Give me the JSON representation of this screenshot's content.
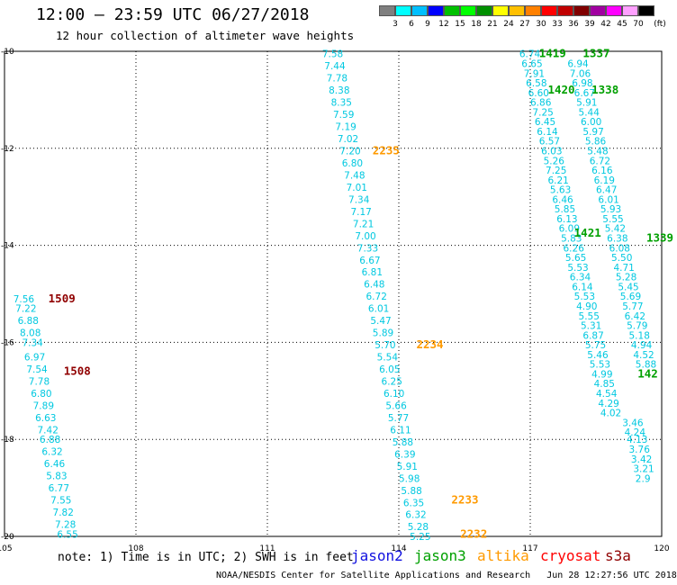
{
  "header": {
    "title": "12:00 – 23:59 UTC 06/27/2018",
    "subtitle": "12 hour collection of altimeter wave heights"
  },
  "colorbar": {
    "unit": "(ft)",
    "colors": [
      "#7f7f7f",
      "#00ffff",
      "#00bfff",
      "#0000ff",
      "#00c000",
      "#00ff00",
      "#009000",
      "#ffff00",
      "#ffc000",
      "#ff8000",
      "#ff0000",
      "#c00000",
      "#800000",
      "#a000a0",
      "#ff00ff",
      "#ffa0ff",
      "#000000"
    ],
    "ticks": [
      "3",
      "6",
      "9",
      "12",
      "15",
      "18",
      "21",
      "24",
      "27",
      "30",
      "33",
      "36",
      "39",
      "42",
      "45",
      "70"
    ]
  },
  "legend": {
    "note": "note: 1) Time is in UTC; 2) SWH is in feet",
    "satellites": [
      {
        "name": "jason2",
        "color": "#1010e0"
      },
      {
        "name": "jason3",
        "color": "#00a000"
      },
      {
        "name": "altika",
        "color": "#ff9a00"
      },
      {
        "name": "cryosat",
        "color": "#ff0000"
      },
      {
        "name": "s3a",
        "color": "#900000"
      }
    ]
  },
  "footer": "NOAA/NESDIS Center for Satellite Applications and Research   Jun 28 12:27:56 UTC 2018",
  "chart_data": {
    "type": "scatter",
    "title": "12:00 – 23:59 UTC 06/27/2018",
    "xlim": [
      105,
      120
    ],
    "ylim": [
      -20,
      -10
    ],
    "x_ticks": [
      "105",
      "108",
      "111",
      "114",
      "117",
      "120"
    ],
    "y_ticks": [
      "-10",
      "-12",
      "-14",
      "-16",
      "-18",
      "-20"
    ],
    "grid": true,
    "series": [
      {
        "name": "s3a",
        "color": "#00c8e0",
        "time_labels": [
          {
            "label": "1509",
            "lon": 106.0,
            "lat": -15.1
          },
          {
            "label": "1508",
            "lon": 106.35,
            "lat": -16.6
          }
        ],
        "points": [
          {
            "lon": 105.2,
            "lat": -15.1,
            "v": "7.56"
          },
          {
            "lon": 105.25,
            "lat": -15.3,
            "v": "7.22"
          },
          {
            "lon": 105.3,
            "lat": -15.55,
            "v": "6.88"
          },
          {
            "lon": 105.35,
            "lat": -15.8,
            "v": "8.08"
          },
          {
            "lon": 105.4,
            "lat": -16.0,
            "v": "7.34"
          },
          {
            "lon": 105.45,
            "lat": -16.3,
            "v": "6.97"
          },
          {
            "lon": 105.5,
            "lat": -16.55,
            "v": "7.54"
          },
          {
            "lon": 105.55,
            "lat": -16.8,
            "v": "7.78"
          },
          {
            "lon": 105.6,
            "lat": -17.05,
            "v": "6.80"
          },
          {
            "lon": 105.65,
            "lat": -17.3,
            "v": "7.89"
          },
          {
            "lon": 105.7,
            "lat": -17.55,
            "v": "6.63"
          },
          {
            "lon": 105.75,
            "lat": -17.8,
            "v": "7.42"
          },
          {
            "lon": 105.8,
            "lat": -18.0,
            "v": "6.88"
          },
          {
            "lon": 105.85,
            "lat": -18.25,
            "v": "6.32"
          },
          {
            "lon": 105.9,
            "lat": -18.5,
            "v": "6.46"
          },
          {
            "lon": 105.95,
            "lat": -18.75,
            "v": "5.83"
          },
          {
            "lon": 106.0,
            "lat": -19.0,
            "v": "6.77"
          },
          {
            "lon": 106.05,
            "lat": -19.25,
            "v": "7.55"
          },
          {
            "lon": 106.1,
            "lat": -19.5,
            "v": "7.82"
          },
          {
            "lon": 106.15,
            "lat": -19.75,
            "v": "7.28"
          },
          {
            "lon": 106.2,
            "lat": -19.95,
            "v": "6.55"
          }
        ]
      },
      {
        "name": "altika",
        "color": "#00c8e0",
        "time_labels": [
          {
            "label": "2235",
            "lon": 113.4,
            "lat": -12.05
          },
          {
            "label": "2234",
            "lon": 114.4,
            "lat": -16.05
          },
          {
            "label": "2233",
            "lon": 115.2,
            "lat": -19.25
          },
          {
            "label": "2232",
            "lon": 115.4,
            "lat": -19.95
          }
        ],
        "points": [
          {
            "lon": 112.25,
            "lat": -10.05,
            "v": "7.58"
          },
          {
            "lon": 112.3,
            "lat": -10.3,
            "v": "7.44"
          },
          {
            "lon": 112.35,
            "lat": -10.55,
            "v": "7.78"
          },
          {
            "lon": 112.4,
            "lat": -10.8,
            "v": "8.38"
          },
          {
            "lon": 112.45,
            "lat": -11.05,
            "v": "8.35"
          },
          {
            "lon": 112.5,
            "lat": -11.3,
            "v": "7.59"
          },
          {
            "lon": 112.55,
            "lat": -11.55,
            "v": "7.19"
          },
          {
            "lon": 112.6,
            "lat": -11.8,
            "v": "7.02"
          },
          {
            "lon": 112.65,
            "lat": -12.05,
            "v": "7.20"
          },
          {
            "lon": 112.7,
            "lat": -12.3,
            "v": "6.80"
          },
          {
            "lon": 112.75,
            "lat": -12.55,
            "v": "7.48"
          },
          {
            "lon": 112.8,
            "lat": -12.8,
            "v": "7.01"
          },
          {
            "lon": 112.85,
            "lat": -13.05,
            "v": "7.34"
          },
          {
            "lon": 112.9,
            "lat": -13.3,
            "v": "7.17"
          },
          {
            "lon": 112.95,
            "lat": -13.55,
            "v": "7.21"
          },
          {
            "lon": 113.0,
            "lat": -13.8,
            "v": "7.00"
          },
          {
            "lon": 113.05,
            "lat": -14.05,
            "v": "7.33"
          },
          {
            "lon": 113.1,
            "lat": -14.3,
            "v": "6.67"
          },
          {
            "lon": 113.15,
            "lat": -14.55,
            "v": "6.81"
          },
          {
            "lon": 113.2,
            "lat": -14.8,
            "v": "6.48"
          },
          {
            "lon": 113.25,
            "lat": -15.05,
            "v": "6.72"
          },
          {
            "lon": 113.3,
            "lat": -15.3,
            "v": "6.01"
          },
          {
            "lon": 113.35,
            "lat": -15.55,
            "v": "5.47"
          },
          {
            "lon": 113.4,
            "lat": -15.8,
            "v": "5.89"
          },
          {
            "lon": 113.45,
            "lat": -16.05,
            "v": "5.70"
          },
          {
            "lon": 113.5,
            "lat": -16.3,
            "v": "5.54"
          },
          {
            "lon": 113.55,
            "lat": -16.55,
            "v": "6.05"
          },
          {
            "lon": 113.6,
            "lat": -16.8,
            "v": "6.25"
          },
          {
            "lon": 113.65,
            "lat": -17.05,
            "v": "6.10"
          },
          {
            "lon": 113.7,
            "lat": -17.3,
            "v": "5.66"
          },
          {
            "lon": 113.75,
            "lat": -17.55,
            "v": "5.77"
          },
          {
            "lon": 113.8,
            "lat": -17.8,
            "v": "6.11"
          },
          {
            "lon": 113.85,
            "lat": -18.05,
            "v": "5.88"
          },
          {
            "lon": 113.9,
            "lat": -18.3,
            "v": "6.39"
          },
          {
            "lon": 113.95,
            "lat": -18.55,
            "v": "5.91"
          },
          {
            "lon": 114.0,
            "lat": -18.8,
            "v": "5.98"
          },
          {
            "lon": 114.05,
            "lat": -19.05,
            "v": "5.88"
          },
          {
            "lon": 114.1,
            "lat": -19.3,
            "v": "6.35"
          },
          {
            "lon": 114.15,
            "lat": -19.55,
            "v": "6.32"
          },
          {
            "lon": 114.2,
            "lat": -19.8,
            "v": "5.28"
          },
          {
            "lon": 114.25,
            "lat": -20.0,
            "v": "5.25"
          }
        ]
      },
      {
        "name": "jason3",
        "color": "#00c8e0",
        "time_labels": [
          {
            "label": "1419",
            "lon": 117.2,
            "lat": -10.05
          },
          {
            "label": "1420",
            "lon": 117.4,
            "lat": -10.8
          },
          {
            "label": "1421",
            "lon": 118.0,
            "lat": -13.75
          }
        ],
        "points": [
          {
            "lon": 116.75,
            "lat": -10.05,
            "v": "6.74"
          },
          {
            "lon": 116.8,
            "lat": -10.25,
            "v": "6.65"
          },
          {
            "lon": 116.85,
            "lat": -10.45,
            "v": "7.91"
          },
          {
            "lon": 116.9,
            "lat": -10.65,
            "v": "6.58"
          },
          {
            "lon": 116.95,
            "lat": -10.85,
            "v": "6.60"
          },
          {
            "lon": 117.0,
            "lat": -11.05,
            "v": "6.86"
          },
          {
            "lon": 117.05,
            "lat": -11.25,
            "v": "7.25"
          },
          {
            "lon": 117.1,
            "lat": -11.45,
            "v": "6.45"
          },
          {
            "lon": 117.15,
            "lat": -11.65,
            "v": "6.14"
          },
          {
            "lon": 117.2,
            "lat": -11.85,
            "v": "6.57"
          },
          {
            "lon": 117.25,
            "lat": -12.05,
            "v": "6.03"
          },
          {
            "lon": 117.3,
            "lat": -12.25,
            "v": "5.26"
          },
          {
            "lon": 117.35,
            "lat": -12.45,
            "v": "7.25"
          },
          {
            "lon": 117.4,
            "lat": -12.65,
            "v": "6.21"
          },
          {
            "lon": 117.45,
            "lat": -12.85,
            "v": "5.63"
          },
          {
            "lon": 117.5,
            "lat": -13.05,
            "v": "6.46"
          },
          {
            "lon": 117.55,
            "lat": -13.25,
            "v": "5.85"
          },
          {
            "lon": 117.6,
            "lat": -13.45,
            "v": "6.13"
          },
          {
            "lon": 117.65,
            "lat": -13.65,
            "v": "6.09"
          },
          {
            "lon": 117.7,
            "lat": -13.85,
            "v": "5.83"
          },
          {
            "lon": 117.75,
            "lat": -14.05,
            "v": "6.26"
          },
          {
            "lon": 117.8,
            "lat": -14.25,
            "v": "5.65"
          },
          {
            "lon": 117.85,
            "lat": -14.45,
            "v": "5.53"
          },
          {
            "lon": 117.9,
            "lat": -14.65,
            "v": "6.34"
          },
          {
            "lon": 117.95,
            "lat": -14.85,
            "v": "6.14"
          },
          {
            "lon": 118.0,
            "lat": -15.05,
            "v": "5.53"
          },
          {
            "lon": 118.05,
            "lat": -15.25,
            "v": "4.90"
          },
          {
            "lon": 118.1,
            "lat": -15.45,
            "v": "5.55"
          },
          {
            "lon": 118.15,
            "lat": -15.65,
            "v": "5.31"
          },
          {
            "lon": 118.2,
            "lat": -15.85,
            "v": "6.87"
          },
          {
            "lon": 118.25,
            "lat": -16.05,
            "v": "5.75"
          },
          {
            "lon": 118.3,
            "lat": -16.25,
            "v": "5.46"
          },
          {
            "lon": 118.35,
            "lat": -16.45,
            "v": "5.53"
          },
          {
            "lon": 118.4,
            "lat": -16.65,
            "v": "4.99"
          },
          {
            "lon": 118.45,
            "lat": -16.85,
            "v": "4.85"
          },
          {
            "lon": 118.5,
            "lat": -17.05,
            "v": "4.54"
          },
          {
            "lon": 118.55,
            "lat": -17.25,
            "v": "4.29"
          },
          {
            "lon": 118.6,
            "lat": -17.45,
            "v": "4.02"
          }
        ]
      },
      {
        "name": "jason3",
        "color": "#00c8e0",
        "time_labels": [
          {
            "label": "1337",
            "lon": 118.2,
            "lat": -10.05
          },
          {
            "label": "1338",
            "lon": 118.4,
            "lat": -10.8
          },
          {
            "label": "1339",
            "lon": 119.65,
            "lat": -13.85
          },
          {
            "label": "142",
            "lon": 119.45,
            "lat": -16.65
          }
        ],
        "points": [
          {
            "lon": 117.85,
            "lat": -10.25,
            "v": "6.94"
          },
          {
            "lon": 117.9,
            "lat": -10.45,
            "v": "7.06"
          },
          {
            "lon": 117.95,
            "lat": -10.65,
            "v": "6.98"
          },
          {
            "lon": 118.0,
            "lat": -10.85,
            "v": "6.67"
          },
          {
            "lon": 118.05,
            "lat": -11.05,
            "v": "5.91"
          },
          {
            "lon": 118.1,
            "lat": -11.25,
            "v": "5.44"
          },
          {
            "lon": 118.15,
            "lat": -11.45,
            "v": "6.00"
          },
          {
            "lon": 118.2,
            "lat": -11.65,
            "v": "5.97"
          },
          {
            "lon": 118.25,
            "lat": -11.85,
            "v": "5.86"
          },
          {
            "lon": 118.3,
            "lat": -12.05,
            "v": "5.48"
          },
          {
            "lon": 118.35,
            "lat": -12.25,
            "v": "6.72"
          },
          {
            "lon": 118.4,
            "lat": -12.45,
            "v": "6.16"
          },
          {
            "lon": 118.45,
            "lat": -12.65,
            "v": "6.19"
          },
          {
            "lon": 118.5,
            "lat": -12.85,
            "v": "6.47"
          },
          {
            "lon": 118.55,
            "lat": -13.05,
            "v": "6.01"
          },
          {
            "lon": 118.6,
            "lat": -13.25,
            "v": "5.93"
          },
          {
            "lon": 118.65,
            "lat": -13.45,
            "v": "5.55"
          },
          {
            "lon": 118.7,
            "lat": -13.65,
            "v": "5.42"
          },
          {
            "lon": 118.75,
            "lat": -13.85,
            "v": "6.38"
          },
          {
            "lon": 118.8,
            "lat": -14.05,
            "v": "6.08"
          },
          {
            "lon": 118.85,
            "lat": -14.25,
            "v": "5.50"
          },
          {
            "lon": 118.9,
            "lat": -14.45,
            "v": "4.71"
          },
          {
            "lon": 118.95,
            "lat": -14.65,
            "v": "5.28"
          },
          {
            "lon": 119.0,
            "lat": -14.85,
            "v": "5.45"
          },
          {
            "lon": 119.05,
            "lat": -15.05,
            "v": "5.69"
          },
          {
            "lon": 119.1,
            "lat": -15.25,
            "v": "5.77"
          },
          {
            "lon": 119.15,
            "lat": -15.45,
            "v": "6.42"
          },
          {
            "lon": 119.2,
            "lat": -15.65,
            "v": "5.79"
          },
          {
            "lon": 119.25,
            "lat": -15.85,
            "v": "5.18"
          },
          {
            "lon": 119.3,
            "lat": -16.05,
            "v": "4.94"
          },
          {
            "lon": 119.35,
            "lat": -16.25,
            "v": "4.52"
          },
          {
            "lon": 119.4,
            "lat": -16.45,
            "v": "5.88"
          },
          {
            "lon": 119.1,
            "lat": -17.65,
            "v": "3.46"
          },
          {
            "lon": 119.15,
            "lat": -17.85,
            "v": "4.24"
          },
          {
            "lon": 119.2,
            "lat": -18.0,
            "v": "4.13"
          },
          {
            "lon": 119.25,
            "lat": -18.2,
            "v": "3.76"
          },
          {
            "lon": 119.3,
            "lat": -18.4,
            "v": "3.42"
          },
          {
            "lon": 119.35,
            "lat": -18.6,
            "v": "3.21"
          },
          {
            "lon": 119.4,
            "lat": -18.8,
            "v": "2.9"
          }
        ]
      }
    ]
  }
}
